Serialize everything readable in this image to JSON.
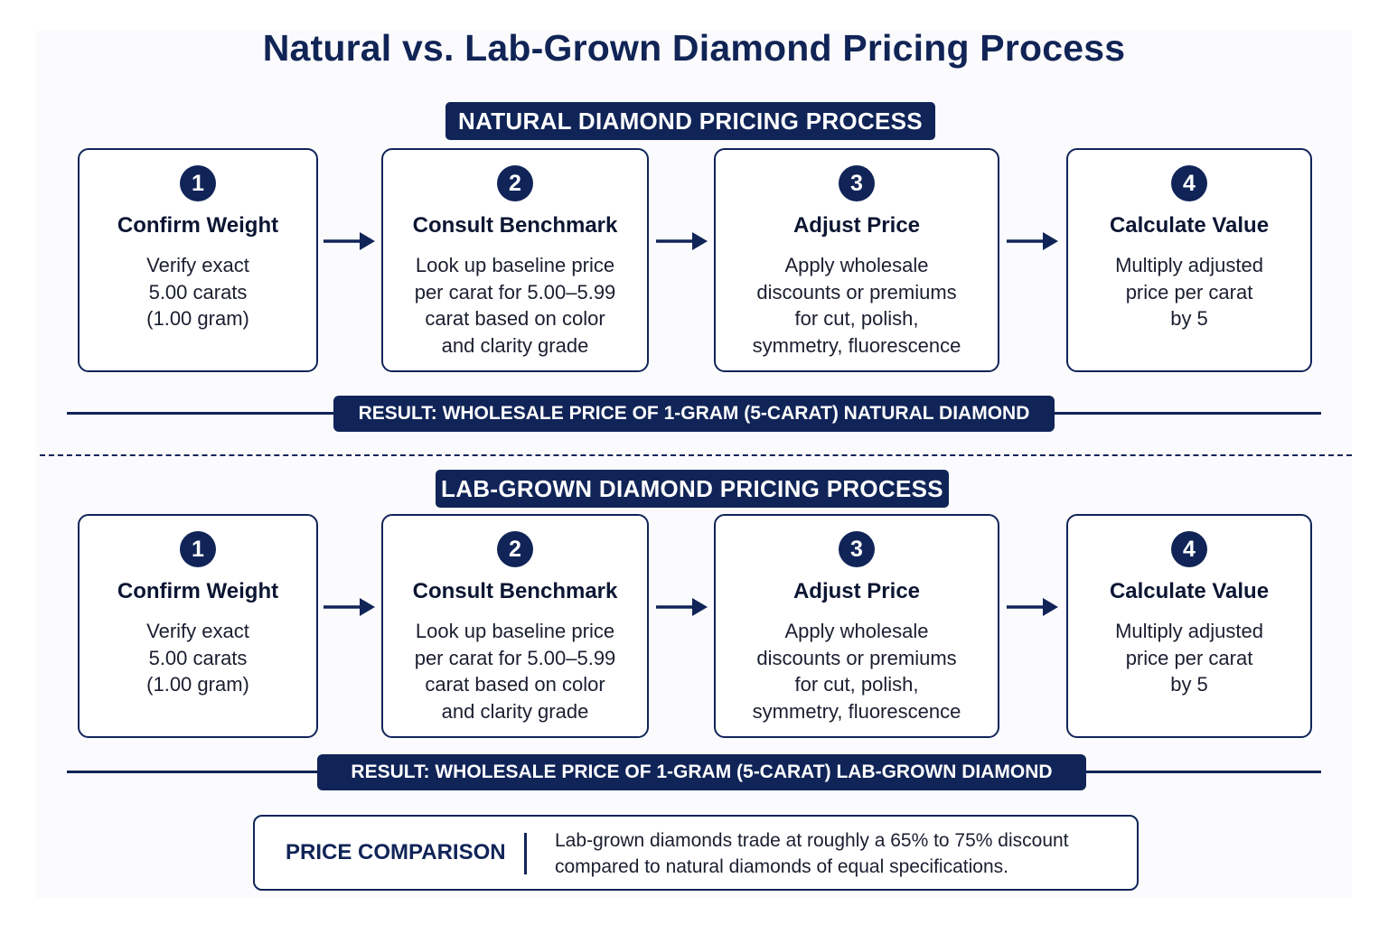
{
  "title": "Natural vs. Lab-Grown Diamond Pricing Process",
  "sections": [
    {
      "header": "NATURAL DIAMOND PRICING PROCESS",
      "steps": [
        {
          "number": "1",
          "title": "Confirm Weight",
          "lines": [
            "Verify exact",
            "5.00 carats",
            "(1.00 gram)"
          ]
        },
        {
          "number": "2",
          "title": "Consult Benchmark",
          "lines": [
            "Look up baseline price",
            "per carat for 5.00–5.99",
            "carat based on color",
            "and clarity grade"
          ]
        },
        {
          "number": "3",
          "title": "Adjust Price",
          "lines": [
            "Apply wholesale",
            "discounts or premiums",
            "for cut, polish,",
            "symmetry, fluorescence"
          ]
        },
        {
          "number": "4",
          "title": "Calculate Value",
          "lines": [
            "Multiply adjusted",
            "price per carat",
            "by 5"
          ]
        }
      ],
      "result": "RESULT: WHOLESALE PRICE OF 1-GRAM (5-CARAT) NATURAL DIAMOND"
    },
    {
      "header": "LAB-GROWN DIAMOND PRICING PROCESS",
      "steps": [
        {
          "number": "1",
          "title": "Confirm Weight",
          "lines": [
            "Verify exact",
            "5.00 carats",
            "(1.00 gram)"
          ]
        },
        {
          "number": "2",
          "title": "Consult Benchmark",
          "lines": [
            "Look up baseline price",
            "per carat for 5.00–5.99",
            "carat based on color",
            "and clarity grade"
          ]
        },
        {
          "number": "3",
          "title": "Adjust Price",
          "lines": [
            "Apply wholesale",
            "discounts or premiums",
            "for cut, polish,",
            "symmetry, fluorescence"
          ]
        },
        {
          "number": "4",
          "title": "Calculate Value",
          "lines": [
            "Multiply adjusted",
            "price per carat",
            "by 5"
          ]
        }
      ],
      "result": "RESULT: WHOLESALE PRICE OF 1-GRAM (5-CARAT) LAB-GROWN DIAMOND"
    }
  ],
  "comparison": {
    "label": "PRICE COMPARISON",
    "lines": [
      "Lab-grown diamonds trade at roughly a 65% to 75% discount",
      "compared to natural diamonds of equal specifications."
    ]
  },
  "colors": {
    "navy": "#102458",
    "text": "#1a1f30",
    "background": "#ffffff"
  }
}
